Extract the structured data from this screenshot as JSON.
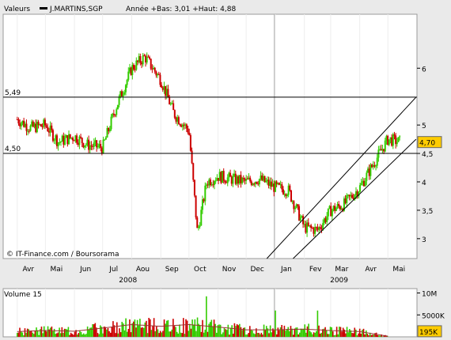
{
  "header": {
    "legend_label": "Valeurs",
    "symbol": "J.MARTINS,SGP",
    "stats": "Année +Bas: 3,01 +Haut: 4,88"
  },
  "price_panel": {
    "watermark": "© IT-Finance.com / Boursorama",
    "hline_labels": [
      "5,49",
      "4,50"
    ],
    "last_value": "4,70",
    "y_ticks": [
      "6",
      "5",
      "4,5",
      "4",
      "3,5",
      "3"
    ],
    "x_months": [
      "Avr",
      "Mai",
      "Jun",
      "Jul",
      "Aou",
      "Sep",
      "Oct",
      "Nov",
      "Dec",
      "Jan",
      "Fev",
      "Mar",
      "Avr",
      "Mai"
    ],
    "year_labels": [
      "2008",
      "2009"
    ]
  },
  "volume_panel": {
    "title": "Volume 15",
    "y_ticks": [
      "10M",
      "5000K"
    ],
    "last_value": "195K"
  },
  "colors": {
    "up": "#33cc00",
    "down": "#cc0000",
    "last_badge": "#ffcc00",
    "background": "#ffffff",
    "frame_bg": "#eaeaea"
  },
  "chart_data": [
    {
      "type": "line",
      "title": "J.MARTINS,SGP",
      "x": [
        "2008-04-01",
        "2008-04-15",
        "2008-05-01",
        "2008-05-15",
        "2008-06-01",
        "2008-06-15",
        "2008-07-01",
        "2008-07-15",
        "2008-08-01",
        "2008-08-15",
        "2008-09-01",
        "2008-09-15",
        "2008-10-01",
        "2008-10-10",
        "2008-10-20",
        "2008-11-01",
        "2008-11-15",
        "2008-12-01",
        "2008-12-15",
        "2009-01-01",
        "2009-01-15",
        "2009-02-01",
        "2009-02-15",
        "2009-03-01",
        "2009-03-15",
        "2009-04-01",
        "2009-04-15",
        "2009-05-01",
        "2009-05-15"
      ],
      "y": [
        5.1,
        4.95,
        5.0,
        4.7,
        4.8,
        4.65,
        4.6,
        5.3,
        6.0,
        6.2,
        5.8,
        5.2,
        4.9,
        3.1,
        4.0,
        4.1,
        4.05,
        4.0,
        4.05,
        3.9,
        3.85,
        3.2,
        3.15,
        3.5,
        3.6,
        3.9,
        4.3,
        4.75,
        4.7
      ],
      "ylim": [
        2.65,
        6.95
      ],
      "y_ticks": [
        3,
        3.5,
        4,
        4.5,
        5,
        6
      ],
      "horizontal_lines": [
        5.49,
        4.5
      ],
      "last": 4.7
    },
    {
      "type": "bar",
      "title": "Volume 15",
      "x": [
        "2008-04-01",
        "2008-05-01",
        "2008-06-01",
        "2008-07-01",
        "2008-08-01",
        "2008-09-01",
        "2008-10-01",
        "2008-11-01",
        "2008-12-01",
        "2009-01-01",
        "2009-02-01",
        "2009-03-01",
        "2009-04-01",
        "2009-05-01"
      ],
      "values": [
        1500000,
        1800000,
        1600000,
        2500000,
        3500000,
        3000000,
        3500000,
        2800000,
        2000000,
        2000000,
        2200000,
        1800000,
        1500000,
        195000
      ],
      "ylim": [
        0,
        11000000
      ],
      "last": 195000
    }
  ]
}
